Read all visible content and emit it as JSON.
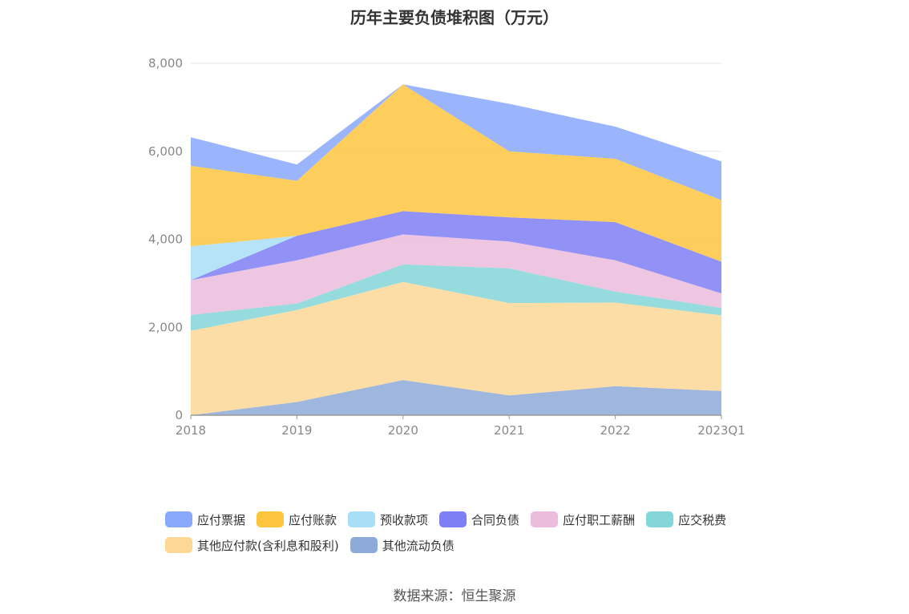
{
  "chart_data": {
    "type": "area",
    "stacked": true,
    "title": "历年主要负债堆积图（万元）",
    "source": "数据来源：恒生聚源",
    "categories": [
      "2018",
      "2019",
      "2020",
      "2021",
      "2022",
      "2023Q1"
    ],
    "ylim": [
      0,
      8000
    ],
    "yticks": [
      "0",
      "2,000",
      "4,000",
      "6,000",
      "8,000"
    ],
    "grid": true,
    "legend_position": "bottom",
    "series": [
      {
        "name": "其他流动负债",
        "color": "#8eaad8",
        "values": [
          0,
          300,
          800,
          450,
          660,
          550
        ]
      },
      {
        "name": "其他应付款(含利息和股利)",
        "color": "#fdd796",
        "values": [
          1920,
          2090,
          2230,
          2100,
          1900,
          1720
        ]
      },
      {
        "name": "应交税费",
        "color": "#84d6d8",
        "values": [
          360,
          150,
          400,
          790,
          250,
          170
        ]
      },
      {
        "name": "应付职工薪酬",
        "color": "#ecbcdc",
        "values": [
          790,
          980,
          680,
          610,
          710,
          330
        ]
      },
      {
        "name": "合同负债",
        "color": "#7f7ff5",
        "values": [
          0,
          560,
          530,
          550,
          870,
          720
        ]
      },
      {
        "name": "预收款项",
        "color": "#a9def7",
        "values": [
          770,
          0,
          0,
          0,
          0,
          0
        ]
      },
      {
        "name": "应付账款",
        "color": "#fdc53e",
        "values": [
          1830,
          1250,
          2880,
          1500,
          1440,
          1400
        ]
      },
      {
        "name": "应付票据",
        "color": "#88a8fb",
        "values": [
          650,
          370,
          0,
          1080,
          730,
          880
        ]
      }
    ],
    "legend_order": [
      "应付票据",
      "应付账款",
      "预收款项",
      "合同负债",
      "应付职工薪酬",
      "应交税费",
      "其他应付款(含利息和股利)",
      "其他流动负债"
    ]
  }
}
